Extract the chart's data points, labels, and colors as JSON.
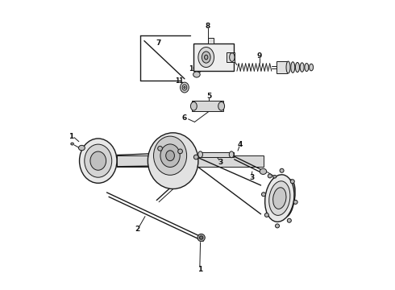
{
  "bg_color": "#ffffff",
  "line_color": "#1a1a1a",
  "label_color": "#111111",
  "figsize": [
    4.9,
    3.6
  ],
  "dpi": 100
}
